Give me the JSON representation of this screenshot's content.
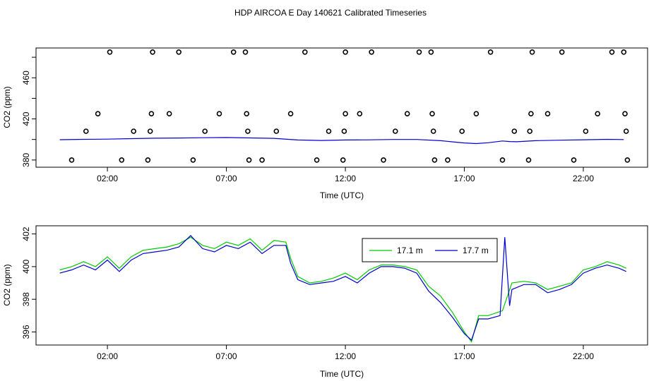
{
  "title": "HDP AIRCOA E  Day 140621  Calibrated Timeseries",
  "chart_data": [
    {
      "type": "scatter",
      "ylabel": "CO2 (ppm)",
      "xlabel": "Time (UTC)",
      "xlim": [
        -1.0,
        24.7
      ],
      "ylim": [
        373,
        489
      ],
      "x_ticks": [
        2,
        7,
        12,
        17,
        22
      ],
      "x_tick_labels": [
        "02:00",
        "07:00",
        "12:00",
        "17:00",
        "22:00"
      ],
      "y_ticks": [
        380,
        420,
        460
      ],
      "y_tick_labels": [
        "380",
        "420",
        "460"
      ],
      "line_color": "#0000cc",
      "point_color": "#000000",
      "points": [
        [
          0.5,
          380
        ],
        [
          1.1,
          408
        ],
        [
          1.6,
          425
        ],
        [
          2.1,
          485
        ],
        [
          2.6,
          380
        ],
        [
          3.1,
          408
        ],
        [
          3.7,
          380
        ],
        [
          3.8,
          408
        ],
        [
          3.85,
          425
        ],
        [
          3.9,
          485
        ],
        [
          4.6,
          425
        ],
        [
          5.0,
          485
        ],
        [
          5.6,
          380
        ],
        [
          6.1,
          408
        ],
        [
          6.7,
          425
        ],
        [
          7.3,
          485
        ],
        [
          7.8,
          485
        ],
        [
          7.85,
          425
        ],
        [
          7.9,
          408
        ],
        [
          7.95,
          380
        ],
        [
          8.5,
          380
        ],
        [
          9.1,
          408
        ],
        [
          9.7,
          425
        ],
        [
          10.3,
          485
        ],
        [
          10.8,
          380
        ],
        [
          11.3,
          408
        ],
        [
          11.9,
          380
        ],
        [
          11.95,
          408
        ],
        [
          12.0,
          425
        ],
        [
          12.0,
          485
        ],
        [
          12.6,
          425
        ],
        [
          13.1,
          485
        ],
        [
          13.6,
          380
        ],
        [
          14.1,
          408
        ],
        [
          14.6,
          425
        ],
        [
          15.1,
          485
        ],
        [
          15.6,
          485
        ],
        [
          15.65,
          425
        ],
        [
          15.7,
          408
        ],
        [
          15.75,
          380
        ],
        [
          16.3,
          380
        ],
        [
          16.9,
          408
        ],
        [
          17.5,
          425
        ],
        [
          18.1,
          485
        ],
        [
          18.6,
          380
        ],
        [
          19.1,
          408
        ],
        [
          19.7,
          380
        ],
        [
          19.75,
          408
        ],
        [
          19.8,
          425
        ],
        [
          19.85,
          485
        ],
        [
          20.5,
          425
        ],
        [
          21.1,
          485
        ],
        [
          21.6,
          380
        ],
        [
          22.1,
          408
        ],
        [
          22.6,
          425
        ],
        [
          23.2,
          485
        ],
        [
          23.7,
          485
        ],
        [
          23.75,
          425
        ],
        [
          23.8,
          408
        ],
        [
          23.85,
          380
        ]
      ],
      "series_line": {
        "x": [
          0,
          1,
          2,
          3,
          4,
          5,
          6,
          7,
          8,
          9,
          10,
          11,
          12,
          13,
          14,
          15,
          16,
          17,
          17.5,
          18,
          18.6,
          18.9,
          19.2,
          20,
          21,
          22,
          23,
          23.7
        ],
        "values": [
          399.8,
          400.1,
          400.3,
          400.8,
          401.2,
          401.4,
          401.7,
          401.9,
          401.5,
          401.1,
          399.5,
          399.0,
          399.5,
          399.6,
          400.0,
          400.0,
          398.8,
          396.6,
          396.0,
          396.8,
          398.5,
          398.0,
          397.8,
          398.8,
          399.3,
          399.7,
          400.1,
          399.9
        ]
      }
    },
    {
      "type": "line",
      "ylabel": "CO2 (ppm)",
      "xlabel": "Time (UTC)",
      "xlim": [
        -1.0,
        24.7
      ],
      "ylim": [
        395.2,
        402.5
      ],
      "x_ticks": [
        2,
        7,
        12,
        17,
        22
      ],
      "x_tick_labels": [
        "02:00",
        "07:00",
        "12:00",
        "17:00",
        "22:00"
      ],
      "y_ticks": [
        396,
        398,
        400,
        402
      ],
      "y_tick_labels": [
        "396",
        "398",
        "400",
        "402"
      ],
      "legend_position": "top-right",
      "series": [
        {
          "name": "17.1 m",
          "color": "#00cc00",
          "x": [
            0.0,
            0.5,
            1.0,
            1.5,
            2.0,
            2.5,
            3.0,
            3.5,
            4.0,
            4.5,
            5.0,
            5.5,
            6.0,
            6.5,
            7.0,
            7.5,
            8.0,
            8.5,
            9.0,
            9.5,
            9.7,
            10.0,
            10.5,
            11.0,
            11.5,
            12.0,
            12.5,
            13.0,
            13.5,
            14.0,
            14.5,
            15.0,
            15.5,
            16.0,
            16.5,
            17.0,
            17.3,
            17.6,
            18.0,
            18.6,
            19.0,
            19.5,
            20.0,
            20.5,
            21.0,
            21.5,
            22.0,
            22.5,
            23.0,
            23.5,
            23.8
          ],
          "values": [
            399.8,
            400.0,
            400.3,
            400.0,
            400.6,
            399.9,
            400.6,
            401.0,
            401.1,
            401.2,
            401.4,
            401.8,
            401.3,
            401.1,
            401.5,
            401.3,
            401.7,
            401.0,
            401.6,
            401.5,
            400.5,
            399.4,
            399.0,
            399.1,
            399.3,
            399.6,
            399.2,
            399.8,
            400.1,
            400.1,
            400.0,
            399.8,
            398.8,
            398.2,
            397.2,
            396.0,
            395.4,
            397.0,
            397.0,
            397.3,
            399.0,
            399.1,
            399.0,
            398.6,
            398.8,
            399.0,
            399.8,
            400.0,
            400.3,
            400.1,
            399.9
          ]
        },
        {
          "name": "17.7 m",
          "color": "#0000cc",
          "x": [
            0.0,
            0.5,
            1.0,
            1.5,
            2.0,
            2.5,
            3.0,
            3.5,
            4.0,
            4.5,
            5.0,
            5.5,
            6.0,
            6.5,
            7.0,
            7.5,
            8.0,
            8.5,
            9.0,
            9.5,
            9.7,
            10.0,
            10.5,
            11.0,
            11.5,
            12.0,
            12.5,
            13.0,
            13.5,
            14.0,
            14.5,
            15.0,
            15.5,
            16.0,
            16.5,
            17.0,
            17.3,
            17.6,
            18.0,
            18.5,
            18.7,
            18.9,
            19.0,
            19.5,
            20.0,
            20.5,
            21.0,
            21.5,
            22.0,
            22.5,
            23.0,
            23.5,
            23.8
          ],
          "values": [
            399.6,
            399.8,
            400.1,
            399.8,
            400.4,
            399.7,
            400.4,
            400.8,
            400.9,
            401.0,
            401.2,
            401.9,
            401.1,
            400.9,
            401.3,
            401.1,
            401.5,
            400.8,
            401.3,
            401.3,
            400.2,
            399.2,
            398.9,
            399.0,
            399.1,
            399.4,
            399.0,
            399.6,
            400.0,
            400.0,
            399.9,
            399.6,
            398.5,
            397.8,
            396.9,
            395.9,
            395.5,
            396.8,
            396.8,
            397.0,
            401.8,
            397.6,
            398.6,
            398.9,
            398.9,
            398.4,
            398.6,
            398.9,
            399.6,
            399.9,
            400.1,
            399.9,
            399.7
          ]
        }
      ]
    }
  ]
}
